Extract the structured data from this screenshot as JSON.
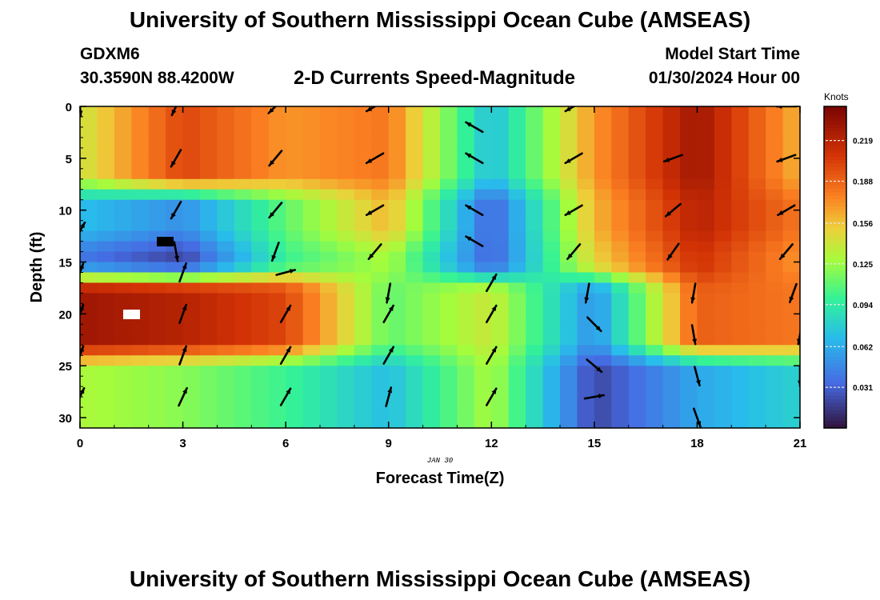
{
  "header": {
    "title": "University of Southern Mississippi Ocean Cube (AMSEAS)",
    "station": "GDXM6",
    "coords": "30.3590N  88.4200W",
    "subtitle": "2-D Currents Speed-Magnitude",
    "model_start_label": "Model Start Time",
    "model_start_value": "01/30/2024 Hour 00"
  },
  "footer": {
    "title": "University of Southern Mississippi Ocean Cube (AMSEAS)"
  },
  "chart_data": {
    "type": "heatmap",
    "title": "2-D Currents Speed-Magnitude",
    "xlabel": "Forecast Time(Z)",
    "ylabel": "Depth (ft)",
    "date_label": "JAN 30",
    "xlim": [
      0,
      21
    ],
    "ylim": [
      0,
      31
    ],
    "x_ticks": [
      0,
      3,
      6,
      9,
      12,
      15,
      18,
      21
    ],
    "y_ticks": [
      0,
      5,
      10,
      15,
      20,
      25,
      30
    ],
    "colorbar": {
      "label": "Knots",
      "ticks": [
        "0.219",
        "0.188",
        "0.156",
        "0.125",
        "0.094",
        "0.062",
        "0.031"
      ],
      "tick_values": [
        0.219,
        0.188,
        0.156,
        0.125,
        0.094,
        0.062,
        0.031
      ],
      "range": [
        0.0,
        0.245
      ]
    },
    "speed_field_knots": {
      "description": "estimated current speed by depth band (rows) and forecast hour (columns)",
      "hours": [
        0,
        3,
        6,
        9,
        12,
        15,
        18,
        21
      ],
      "depth_bands_ft": [
        [
          0,
          8
        ],
        [
          8,
          13
        ],
        [
          13,
          16.5
        ],
        [
          16.5,
          24
        ],
        [
          24,
          31
        ]
      ],
      "values": [
        [
          0.14,
          0.2,
          0.17,
          0.18,
          0.07,
          0.17,
          0.23,
          0.16
        ],
        [
          0.07,
          0.05,
          0.11,
          0.16,
          0.03,
          0.16,
          0.22,
          0.18
        ],
        [
          0.04,
          0.02,
          0.1,
          0.13,
          0.03,
          0.15,
          0.21,
          0.17
        ],
        [
          0.23,
          0.22,
          0.2,
          0.11,
          0.14,
          0.05,
          0.19,
          0.18
        ],
        [
          0.13,
          0.12,
          0.1,
          0.07,
          0.13,
          0.02,
          0.06,
          0.08
        ]
      ]
    },
    "vectors": [
      {
        "hour": 0.0,
        "depth": 0,
        "dir_deg": 175
      },
      {
        "hour": 2.8,
        "depth": 0,
        "dir_deg": 205
      },
      {
        "hour": 5.7,
        "depth": 0,
        "dir_deg": 225
      },
      {
        "hour": 8.6,
        "depth": 0,
        "dir_deg": 240
      },
      {
        "hour": 14.4,
        "depth": 0,
        "dir_deg": 240
      },
      {
        "hour": 20.6,
        "depth": 0,
        "dir_deg": 270
      },
      {
        "hour": 11.5,
        "depth": 2,
        "dir_deg": 300
      },
      {
        "hour": 2.8,
        "depth": 5,
        "dir_deg": 210
      },
      {
        "hour": 5.7,
        "depth": 5,
        "dir_deg": 220
      },
      {
        "hour": 8.6,
        "depth": 5,
        "dir_deg": 240
      },
      {
        "hour": 11.5,
        "depth": 5,
        "dir_deg": 300
      },
      {
        "hour": 14.4,
        "depth": 5,
        "dir_deg": 240
      },
      {
        "hour": 17.3,
        "depth": 5,
        "dir_deg": 250
      },
      {
        "hour": 20.6,
        "depth": 5,
        "dir_deg": 250
      },
      {
        "hour": 2.8,
        "depth": 10,
        "dir_deg": 210
      },
      {
        "hour": 5.7,
        "depth": 10,
        "dir_deg": 220
      },
      {
        "hour": 8.6,
        "depth": 10,
        "dir_deg": 240
      },
      {
        "hour": 11.5,
        "depth": 10,
        "dir_deg": 300
      },
      {
        "hour": 14.4,
        "depth": 10,
        "dir_deg": 240
      },
      {
        "hour": 17.3,
        "depth": 10,
        "dir_deg": 230
      },
      {
        "hour": 20.6,
        "depth": 10,
        "dir_deg": 240
      },
      {
        "hour": 0.0,
        "depth": 12,
        "dir_deg": 30
      },
      {
        "hour": 2.8,
        "depth": 14,
        "dir_deg": 170
      },
      {
        "hour": 5.7,
        "depth": 14,
        "dir_deg": 200
      },
      {
        "hour": 8.6,
        "depth": 14,
        "dir_deg": 220
      },
      {
        "hour": 11.5,
        "depth": 13,
        "dir_deg": 300
      },
      {
        "hour": 14.4,
        "depth": 14,
        "dir_deg": 220
      },
      {
        "hour": 17.3,
        "depth": 14,
        "dir_deg": 215
      },
      {
        "hour": 20.6,
        "depth": 14,
        "dir_deg": 220
      },
      {
        "hour": 0.0,
        "depth": 16,
        "dir_deg": 20
      },
      {
        "hour": 3.0,
        "depth": 16,
        "dir_deg": 20
      },
      {
        "hour": 6.0,
        "depth": 16,
        "dir_deg": 75
      },
      {
        "hour": 12.0,
        "depth": 17,
        "dir_deg": 30
      },
      {
        "hour": 9.0,
        "depth": 18,
        "dir_deg": 190
      },
      {
        "hour": 14.8,
        "depth": 18,
        "dir_deg": 190
      },
      {
        "hour": 17.9,
        "depth": 18,
        "dir_deg": 190
      },
      {
        "hour": 20.8,
        "depth": 18,
        "dir_deg": 200
      },
      {
        "hour": 0.0,
        "depth": 20,
        "dir_deg": 20
      },
      {
        "hour": 3.0,
        "depth": 20,
        "dir_deg": 20
      },
      {
        "hour": 6.0,
        "depth": 20,
        "dir_deg": 30
      },
      {
        "hour": 9.0,
        "depth": 20,
        "dir_deg": 30
      },
      {
        "hour": 12.0,
        "depth": 20,
        "dir_deg": 30
      },
      {
        "hour": 15.0,
        "depth": 21,
        "dir_deg": 135
      },
      {
        "hour": 17.9,
        "depth": 22,
        "dir_deg": 170
      },
      {
        "hour": 21.0,
        "depth": 22,
        "dir_deg": 190
      },
      {
        "hour": 0.0,
        "depth": 24,
        "dir_deg": 20
      },
      {
        "hour": 3.0,
        "depth": 24,
        "dir_deg": 20
      },
      {
        "hour": 6.0,
        "depth": 24,
        "dir_deg": 30
      },
      {
        "hour": 9.0,
        "depth": 24,
        "dir_deg": 30
      },
      {
        "hour": 12.0,
        "depth": 24,
        "dir_deg": 30
      },
      {
        "hour": 15.0,
        "depth": 25,
        "dir_deg": 130
      },
      {
        "hour": 18.0,
        "depth": 26,
        "dir_deg": 165
      },
      {
        "hour": 21.0,
        "depth": 26,
        "dir_deg": 180
      },
      {
        "hour": 0.0,
        "depth": 28,
        "dir_deg": 25
      },
      {
        "hour": 3.0,
        "depth": 28,
        "dir_deg": 25
      },
      {
        "hour": 6.0,
        "depth": 28,
        "dir_deg": 30
      },
      {
        "hour": 9.0,
        "depth": 28,
        "dir_deg": 15
      },
      {
        "hour": 12.0,
        "depth": 28,
        "dir_deg": 30
      },
      {
        "hour": 15.0,
        "depth": 28,
        "dir_deg": 80
      },
      {
        "hour": 18.0,
        "depth": 30,
        "dir_deg": 160
      }
    ]
  }
}
